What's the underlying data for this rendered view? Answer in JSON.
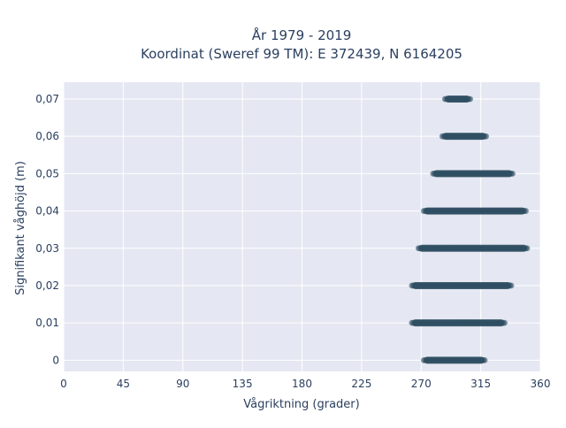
{
  "chart_data": {
    "type": "scatter",
    "title_line1": "År 1979 - 2019",
    "title_line2": "Koordinat (Sweref 99 TM): E 372439, N 6164205",
    "xlabel": "Vågriktning (grader)",
    "ylabel": "Signifikant våghöjd (m)",
    "xlim": [
      0,
      360
    ],
    "ylim": [
      -0.003,
      0.0745
    ],
    "x_ticks": [
      0,
      45,
      90,
      135,
      180,
      225,
      270,
      315,
      360
    ],
    "x_tick_labels": [
      "0",
      "45",
      "90",
      "135",
      "180",
      "225",
      "270",
      "315",
      "360"
    ],
    "y_ticks": [
      0,
      0.01,
      0.02,
      0.03,
      0.04,
      0.05,
      0.06,
      0.07
    ],
    "y_tick_labels": [
      "0",
      "0,01",
      "0,02",
      "0,03",
      "0,04",
      "0,05",
      "0,06",
      "0,07"
    ],
    "grid": true,
    "colors": {
      "plot_bg": "#e5e8f2",
      "grid": "#ffffff",
      "marker": "#2f4f63",
      "text": "#2a3f5f"
    },
    "series": [
      {
        "bands": [
          {
            "y": 0.0,
            "x_min": 272,
            "x_max": 318
          },
          {
            "y": 0.01,
            "x_min": 263,
            "x_max": 333
          },
          {
            "y": 0.02,
            "x_min": 263,
            "x_max": 338
          },
          {
            "y": 0.03,
            "x_min": 268,
            "x_max": 350
          },
          {
            "y": 0.04,
            "x_min": 272,
            "x_max": 349
          },
          {
            "y": 0.05,
            "x_min": 279,
            "x_max": 339
          },
          {
            "y": 0.06,
            "x_min": 286,
            "x_max": 319
          },
          {
            "y": 0.07,
            "x_min": 288,
            "x_max": 307
          }
        ]
      }
    ]
  }
}
